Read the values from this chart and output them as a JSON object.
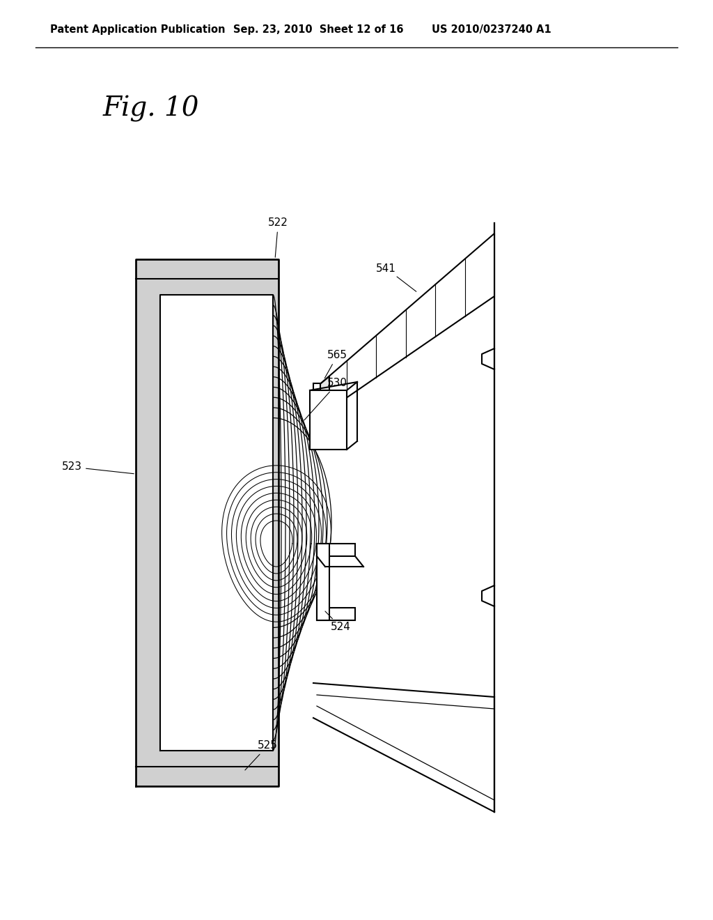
{
  "bg_color": "#ffffff",
  "header_left": "Patent Application Publication",
  "header_mid": "Sep. 23, 2010  Sheet 12 of 16",
  "header_right": "US 2010/0237240 A1",
  "fig_label": "Fig. 10",
  "lw": 1.5,
  "hatch_color": "#d0d0d0",
  "label_fs": 11
}
